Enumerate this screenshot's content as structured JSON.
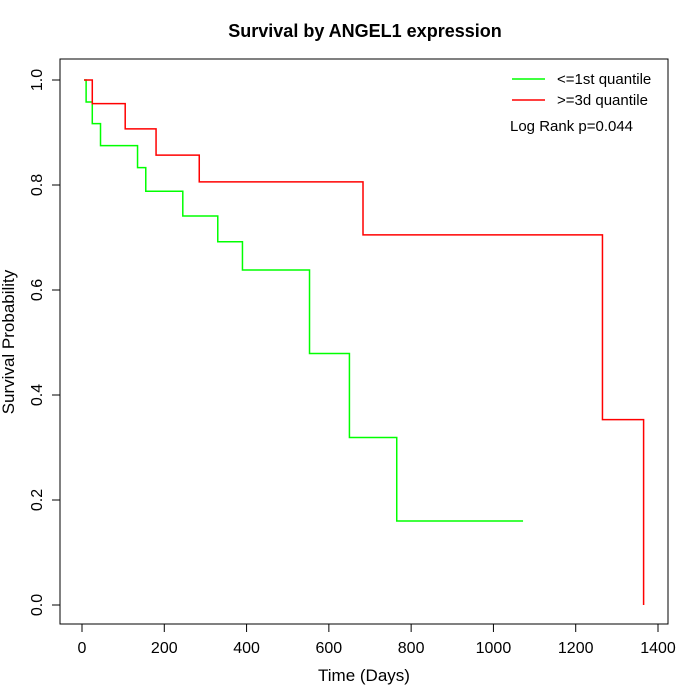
{
  "chart_data": {
    "type": "line",
    "title": "Survival by ANGEL1 expression",
    "xlabel": "Time (Days)",
    "ylabel": "Survival Probability",
    "xlim": [
      0,
      1400
    ],
    "ylim": [
      0,
      1.0
    ],
    "x_ticks": [
      "0",
      "200",
      "400",
      "600",
      "800",
      "1000",
      "1200",
      "1400"
    ],
    "y_ticks": [
      "0.0",
      "0.2",
      "0.4",
      "0.6",
      "0.8",
      "1.0"
    ],
    "annotation": "Log Rank p=0.044",
    "legend_position": "top-right",
    "series": [
      {
        "name": "<=1st quantile",
        "color": "#00ff00",
        "steps": [
          [
            5,
            1.0
          ],
          [
            10,
            0.958
          ],
          [
            25,
            0.917
          ],
          [
            45,
            0.875
          ],
          [
            135,
            0.833
          ],
          [
            155,
            0.788
          ],
          [
            245,
            0.741
          ],
          [
            330,
            0.692
          ],
          [
            390,
            0.638
          ],
          [
            553,
            0.479
          ],
          [
            650,
            0.319
          ],
          [
            765,
            0.16
          ],
          [
            1072,
            0.16
          ]
        ]
      },
      {
        "name": ">=3d quantile",
        "color": "#ff0000",
        "steps": [
          [
            5,
            1.0
          ],
          [
            25,
            0.955
          ],
          [
            105,
            0.907
          ],
          [
            180,
            0.857
          ],
          [
            285,
            0.806
          ],
          [
            683,
            0.705
          ],
          [
            1265,
            0.353
          ],
          [
            1365,
            0.0
          ]
        ]
      }
    ]
  }
}
